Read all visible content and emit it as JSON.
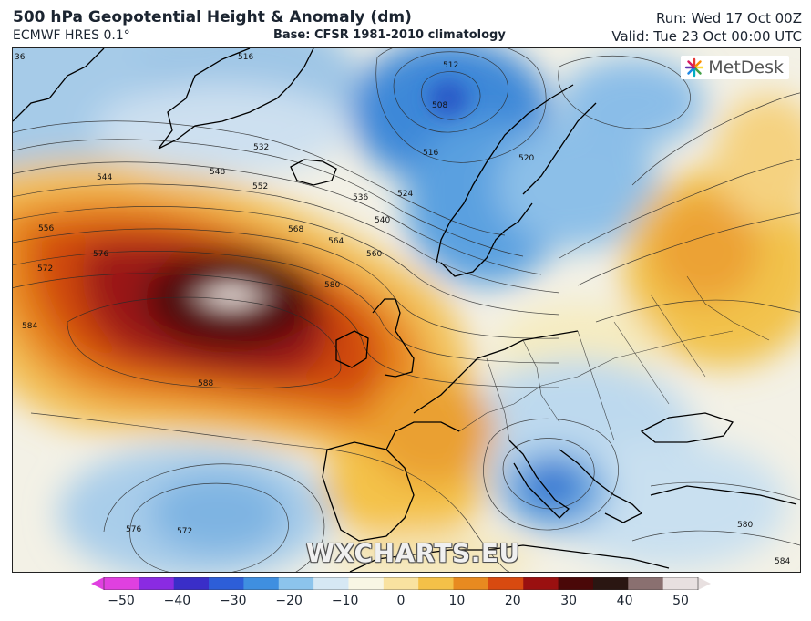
{
  "header": {
    "title": "500 hPa Geopotential Height & Anomaly (dm)",
    "model": "ECMWF HRES 0.1°",
    "base": "Base: CFSR 1981-2010 climatology",
    "run": "Run: Wed 17 Oct 00Z",
    "valid": "Valid: Tue 23 Oct 00:00 UTC"
  },
  "logo": {
    "text": "MetDesk",
    "icon": "metdesk-starburst-icon"
  },
  "watermark": "WXCHARTS.EU",
  "contour_labels": [
    "516",
    "512",
    "508",
    "516",
    "520",
    "524",
    "532",
    "536",
    "540",
    "544",
    "548",
    "552",
    "556",
    "560",
    "564",
    "568",
    "572",
    "576",
    "580",
    "584",
    "588",
    "572",
    "576",
    "580",
    "584",
    "36"
  ],
  "colorbar": {
    "ticks": [
      "−50",
      "−40",
      "−30",
      "−20",
      "−10",
      "0",
      "10",
      "20",
      "30",
      "40",
      "50"
    ],
    "colors": [
      "#e040e0",
      "#8a2be2",
      "#3a2ec8",
      "#2d5ed8",
      "#3f8fe0",
      "#8cc4ec",
      "#d6e8f4",
      "#f8f6e4",
      "#f9e2a0",
      "#f4c048",
      "#e88a20",
      "#d84a10",
      "#9a1010",
      "#4a0808",
      "#2a1612",
      "#8a7070",
      "#e8e0e0"
    ]
  }
}
